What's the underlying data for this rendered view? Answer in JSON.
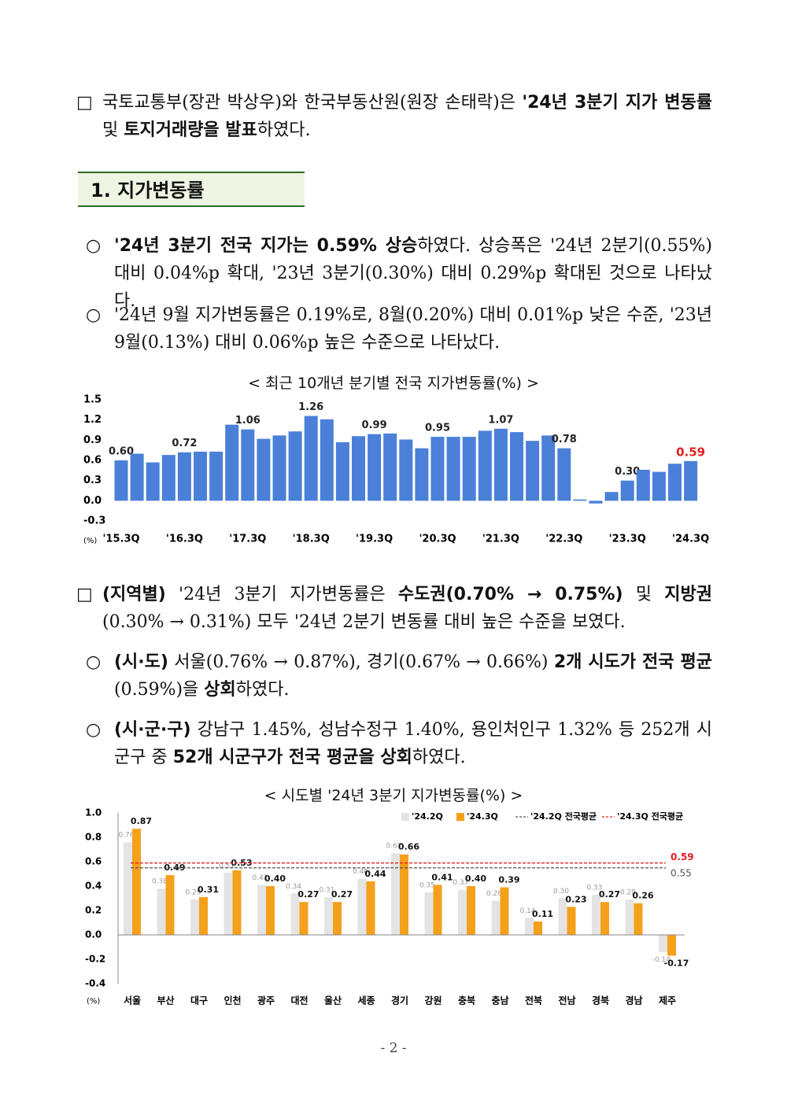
{
  "intro": {
    "marker": "□",
    "runs": [
      "국토교통부(장관 박상우)와 한국부동산원(원장 손태락)은 ",
      "'24년 3분기 지가 변동률",
      " 및 ",
      "토지거래량을 발표",
      "하였다."
    ]
  },
  "section": "1. 지가변동률",
  "bullet1": {
    "marker": "○",
    "runs": [
      "'24년 3분기 전국 지가는 0.59% 상승",
      "하였다. 상승폭은 '24년 2분기(0.55%) 대비 0.04%p 확대, '23년 3분기(0.30%) 대비 0.29%p 확대된 것으로 나타났다."
    ]
  },
  "bullet2": {
    "marker": "○",
    "runs": [
      "'24년 9월 지가변동률은 0.19%로, 8월(0.20%) 대비 0.01%p 낮은 수준, '23년 9월(0.13%) 대비 0.06%p 높은 수준으로 나타났다."
    ]
  },
  "regional": {
    "marker": "□",
    "runs": [
      "(지역별)",
      " '24년 3분기 지가변동률은 ",
      "수도권(0.70% → 0.75%)",
      " 및 ",
      "지방권",
      " (0.30% → 0.31%) 모두 '24년 2분기 변동률 대비 높은 수준을 보였다."
    ]
  },
  "bullet3": {
    "marker": "○",
    "runs": [
      "(시·도)",
      " 서울(0.76% → 0.87%), 경기(0.67% → 0.66%) ",
      "2개 시도가 전국 평균",
      " (0.59%)을 ",
      "상회",
      "하였다."
    ]
  },
  "bullet4": {
    "marker": "○",
    "runs": [
      "(시·군·구)",
      " 강남구 1.45%, 성남수정구 1.40%, 용인처인구 1.32% 등 252개 시군구 중 ",
      "52개 시군구가 전국 평균을 상회",
      "하였다."
    ]
  },
  "footer": "- 2 -",
  "chart_data": [
    {
      "type": "bar",
      "title": "< 최근 10개년 분기별 전국 지가변동률(%) >",
      "y_unit": "(%)",
      "categories": [
        "'15.3Q",
        null,
        null,
        null,
        "'16.3Q",
        null,
        null,
        null,
        "'17.3Q",
        null,
        null,
        null,
        "'18.3Q",
        null,
        null,
        null,
        "'19.3Q",
        null,
        null,
        null,
        "'20.3Q",
        null,
        null,
        null,
        "'21.3Q",
        null,
        null,
        null,
        "'22.3Q",
        null,
        null,
        null,
        "'23.3Q",
        null,
        null,
        null,
        "'24.3Q"
      ],
      "values": [
        0.6,
        0.7,
        0.57,
        0.68,
        0.72,
        0.73,
        0.73,
        1.13,
        1.06,
        0.92,
        0.97,
        1.03,
        1.26,
        1.21,
        0.87,
        0.96,
        0.99,
        1.0,
        0.91,
        0.78,
        0.95,
        0.95,
        0.95,
        1.04,
        1.07,
        1.02,
        0.89,
        0.97,
        0.78,
        0.02,
        -0.04,
        0.13,
        0.3,
        0.46,
        0.43,
        0.55,
        0.59
      ],
      "value_labels": [
        "0.60",
        null,
        null,
        null,
        "0.72",
        null,
        null,
        null,
        "1.06",
        null,
        null,
        null,
        "1.26",
        null,
        null,
        null,
        "0.99",
        null,
        null,
        null,
        "0.95",
        null,
        null,
        null,
        "1.07",
        null,
        null,
        null,
        "0.78",
        null,
        null,
        null,
        "0.30",
        null,
        null,
        null,
        "0.59"
      ],
      "color": "#4a80d8",
      "ylim": [
        -0.3,
        1.5
      ],
      "yticks": [
        1.5,
        1.2,
        0.9,
        0.6,
        0.3,
        {
          "value": 0,
          "label": "0.0"
        },
        -0.3
      ]
    },
    {
      "type": "bar",
      "title": "< 시도별 '24년 3분기 지가변동률(%) >",
      "y_unit": "(%)",
      "categories": [
        "서울",
        "부산",
        "대구",
        "인천",
        "광주",
        "대전",
        "울산",
        "세종",
        "경기",
        "강원",
        "충북",
        "충남",
        "전북",
        "전남",
        "경북",
        "경남",
        "제주"
      ],
      "series": [
        {
          "name": "'24.2Q",
          "color": "#e4e4e4",
          "values": [
            0.76,
            0.38,
            0.29,
            0.51,
            0.41,
            0.34,
            0.31,
            0.46,
            0.67,
            0.35,
            0.37,
            0.28,
            0.14,
            0.3,
            0.33,
            0.29,
            -0.14
          ],
          "value_labels": [
            "0.76",
            "0.38",
            "0.29",
            "0.51",
            "0.41",
            "0.34",
            "0.31",
            "0.46",
            "0.67",
            "0.35",
            "0.37",
            "0.28",
            "0.14",
            "0.30",
            "0.33",
            "0.29",
            "-0.14"
          ]
        },
        {
          "name": "'24.3Q",
          "color": "#f5a01a",
          "values": [
            0.87,
            0.49,
            0.31,
            0.53,
            0.4,
            0.27,
            0.27,
            0.44,
            0.66,
            0.41,
            0.4,
            0.39,
            0.11,
            0.23,
            0.27,
            0.26,
            -0.17
          ],
          "value_labels": [
            "0.87",
            "0.49",
            "0.31",
            "0.53",
            "0.40",
            "0.27",
            "0.27",
            "0.44",
            "0.66",
            "0.41",
            "0.40",
            "0.39",
            "0.11",
            "0.23",
            "0.27",
            "0.26",
            "-0.17"
          ]
        }
      ],
      "reference_lines": [
        {
          "name": "'24.2Q 전국평균",
          "value": 0.55,
          "color": "#555555"
        },
        {
          "name": "'24.3Q 전국평균",
          "value": 0.59,
          "color": "#e02020"
        }
      ],
      "ylim": [
        -0.4,
        1.0
      ],
      "yticks": [
        {
          "value": 1,
          "label": "1.0"
        },
        0.8,
        0.6,
        0.4,
        0.2,
        {
          "value": 0,
          "label": "0.0"
        },
        -0.2,
        -0.4
      ]
    }
  ]
}
